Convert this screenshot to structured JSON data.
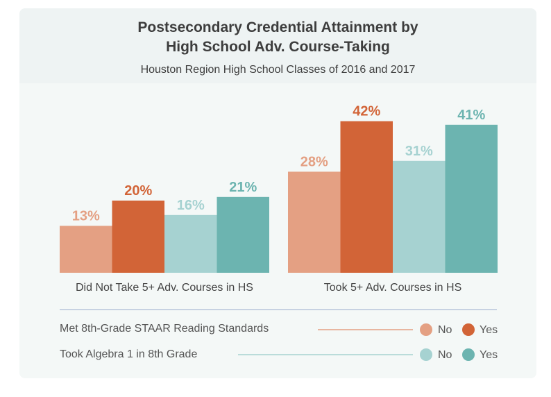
{
  "chart_data": {
    "type": "bar",
    "title": "Postsecondary Credential Attainment by High School Adv. Course-Taking",
    "title_lines": [
      "Postsecondary Credential Attainment by",
      "High School Adv. Course-Taking"
    ],
    "subtitle": "Houston Region High School Classes of 2016 and 2017",
    "categories": [
      "Did Not Take 5+ Adv. Courses in HS",
      "Took 5+ Adv. Courses in HS"
    ],
    "series": [
      {
        "name": "Met 8th-Grade STAAR Reading Standards: No",
        "values": [
          13,
          28
        ],
        "color": "#e4a083"
      },
      {
        "name": "Met 8th-Grade STAAR Reading Standards: Yes",
        "values": [
          20,
          42
        ],
        "color": "#d26437"
      },
      {
        "name": "Took Algebra 1 in 8th Grade: No",
        "values": [
          16,
          31
        ],
        "color": "#a6d2d1"
      },
      {
        "name": "Took Algebra 1 in 8th Grade: Yes",
        "values": [
          21,
          41
        ],
        "color": "#6cb4b0"
      }
    ],
    "value_suffix": "%",
    "legend_placement": "bottom",
    "grid": false
  },
  "legend": [
    {
      "label": "Met 8th-Grade STAAR Reading Standards",
      "no": "No",
      "yes": "Yes",
      "no_color": "#e4a083",
      "yes_color": "#d26437"
    },
    {
      "label": "Took Algebra 1 in 8th Grade",
      "no": "No",
      "yes": "Yes",
      "no_color": "#a6d2d1",
      "yes_color": "#6cb4b0"
    }
  ]
}
